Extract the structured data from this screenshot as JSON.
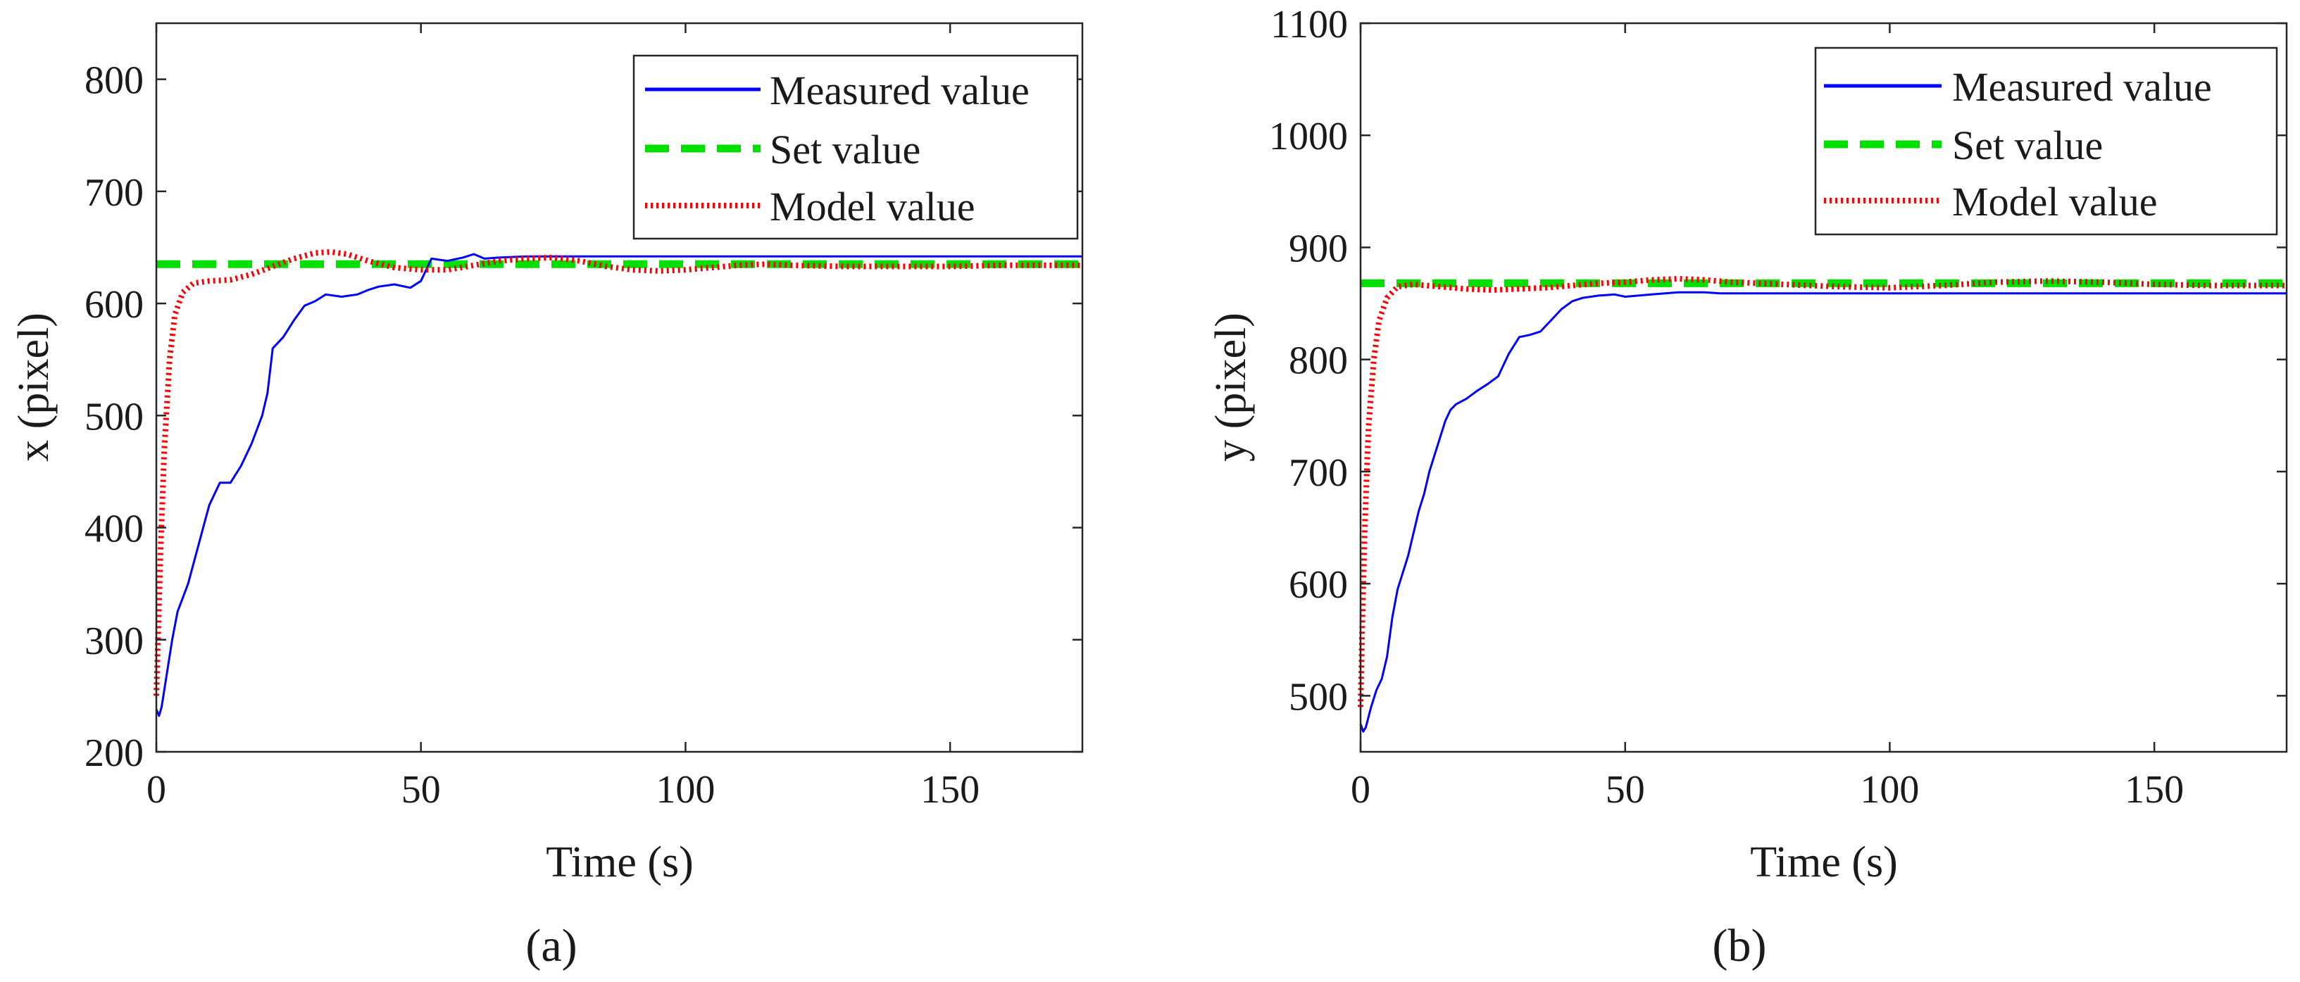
{
  "figure": {
    "panels": [
      "a",
      "b"
    ]
  },
  "legend_labels": {
    "measured": "Measured value",
    "set": "Set value",
    "model": "Model value"
  },
  "colors": {
    "measured": "#0000ff",
    "set": "#00e000",
    "model": "#ff0000",
    "axes": "#262626"
  },
  "chart_data": [
    {
      "id": "a",
      "type": "line",
      "caption": "(a)",
      "xlabel": "Time (s)",
      "ylabel": "x (pixel)",
      "xlim": [
        0,
        175
      ],
      "ylim": [
        200,
        850
      ],
      "xticks": [
        0,
        50,
        100,
        150
      ],
      "yticks": [
        200,
        300,
        400,
        500,
        600,
        700,
        800
      ],
      "grid": false,
      "legend_position": "top-right",
      "series": [
        {
          "name": "Measured value",
          "style": "solid",
          "points": [
            [
              0,
              238
            ],
            [
              0.5,
              232
            ],
            [
              1,
              240
            ],
            [
              2,
              270
            ],
            [
              3,
              300
            ],
            [
              4,
              325
            ],
            [
              6,
              350
            ],
            [
              8,
              385
            ],
            [
              10,
              420
            ],
            [
              12,
              440
            ],
            [
              14,
              440
            ],
            [
              16,
              455
            ],
            [
              18,
              475
            ],
            [
              20,
              500
            ],
            [
              21,
              520
            ],
            [
              22,
              560
            ],
            [
              24,
              570
            ],
            [
              26,
              585
            ],
            [
              28,
              598
            ],
            [
              30,
              602
            ],
            [
              32,
              608
            ],
            [
              35,
              606
            ],
            [
              38,
              608
            ],
            [
              40,
              612
            ],
            [
              42,
              615
            ],
            [
              45,
              617
            ],
            [
              48,
              614
            ],
            [
              50,
              620
            ],
            [
              52,
              640
            ],
            [
              55,
              638
            ],
            [
              58,
              641
            ],
            [
              60,
              644
            ],
            [
              62,
              640
            ],
            [
              65,
              641
            ],
            [
              70,
              642
            ],
            [
              80,
              642
            ],
            [
              100,
              642
            ],
            [
              120,
              642
            ],
            [
              140,
              642
            ],
            [
              160,
              642
            ],
            [
              175,
              642
            ]
          ]
        },
        {
          "name": "Set value",
          "style": "dashed",
          "points": [
            [
              0,
              635
            ],
            [
              175,
              635
            ]
          ]
        },
        {
          "name": "Model value",
          "style": "dotted",
          "points": [
            [
              0,
              250
            ],
            [
              0.3,
              300
            ],
            [
              0.8,
              380
            ],
            [
              1.5,
              470
            ],
            [
              2.5,
              550
            ],
            [
              3.5,
              590
            ],
            [
              5,
              610
            ],
            [
              7,
              618
            ],
            [
              10,
              620
            ],
            [
              14,
              621
            ],
            [
              18,
              626
            ],
            [
              22,
              633
            ],
            [
              26,
              640
            ],
            [
              30,
              645
            ],
            [
              33,
              646
            ],
            [
              36,
              644
            ],
            [
              40,
              638
            ],
            [
              45,
              632
            ],
            [
              50,
              630
            ],
            [
              55,
              630
            ],
            [
              60,
              634
            ],
            [
              65,
              638
            ],
            [
              70,
              640
            ],
            [
              75,
              641
            ],
            [
              80,
              638
            ],
            [
              85,
              633
            ],
            [
              90,
              630
            ],
            [
              95,
              629
            ],
            [
              100,
              630
            ],
            [
              105,
              632
            ],
            [
              110,
              634
            ],
            [
              115,
              635
            ],
            [
              120,
              634
            ],
            [
              130,
              633
            ],
            [
              140,
              633
            ],
            [
              150,
              633
            ],
            [
              160,
              634
            ],
            [
              175,
              634
            ]
          ]
        }
      ]
    },
    {
      "id": "b",
      "type": "line",
      "caption": "(b)",
      "xlabel": "Time (s)",
      "ylabel": "y (pixel)",
      "xlim": [
        0,
        175
      ],
      "ylim": [
        450,
        1100
      ],
      "xticks": [
        0,
        50,
        100,
        150
      ],
      "yticks": [
        500,
        600,
        700,
        800,
        900,
        1000,
        1100
      ],
      "grid": false,
      "legend_position": "top-right",
      "series": [
        {
          "name": "Measured value",
          "style": "solid",
          "points": [
            [
              0,
              475
            ],
            [
              0.5,
              468
            ],
            [
              1,
              472
            ],
            [
              2,
              490
            ],
            [
              3,
              505
            ],
            [
              4,
              515
            ],
            [
              5,
              535
            ],
            [
              6,
              570
            ],
            [
              7,
              595
            ],
            [
              8,
              610
            ],
            [
              9,
              625
            ],
            [
              10,
              645
            ],
            [
              11,
              665
            ],
            [
              12,
              680
            ],
            [
              13,
              700
            ],
            [
              14,
              715
            ],
            [
              15,
              730
            ],
            [
              16,
              745
            ],
            [
              17,
              755
            ],
            [
              18,
              760
            ],
            [
              20,
              765
            ],
            [
              22,
              772
            ],
            [
              24,
              778
            ],
            [
              26,
              785
            ],
            [
              28,
              805
            ],
            [
              30,
              820
            ],
            [
              32,
              822
            ],
            [
              34,
              825
            ],
            [
              36,
              835
            ],
            [
              38,
              845
            ],
            [
              40,
              852
            ],
            [
              42,
              855
            ],
            [
              45,
              857
            ],
            [
              48,
              858
            ],
            [
              50,
              856
            ],
            [
              55,
              858
            ],
            [
              60,
              860
            ],
            [
              65,
              860
            ],
            [
              68,
              859
            ],
            [
              70,
              859
            ],
            [
              80,
              859
            ],
            [
              100,
              859
            ],
            [
              120,
              859
            ],
            [
              140,
              859
            ],
            [
              160,
              859
            ],
            [
              175,
              859
            ]
          ]
        },
        {
          "name": "Set value",
          "style": "dashed",
          "points": [
            [
              0,
              868
            ],
            [
              175,
              868
            ]
          ]
        },
        {
          "name": "Model value",
          "style": "dotted",
          "points": [
            [
              0,
              490
            ],
            [
              0.3,
              560
            ],
            [
              0.8,
              650
            ],
            [
              1.5,
              740
            ],
            [
              2.5,
              800
            ],
            [
              3.5,
              835
            ],
            [
              5,
              855
            ],
            [
              7,
              865
            ],
            [
              10,
              867
            ],
            [
              15,
              865
            ],
            [
              20,
              863
            ],
            [
              25,
              862
            ],
            [
              30,
              863
            ],
            [
              35,
              864
            ],
            [
              40,
              866
            ],
            [
              45,
              868
            ],
            [
              50,
              869
            ],
            [
              55,
              871
            ],
            [
              60,
              872
            ],
            [
              65,
              871
            ],
            [
              70,
              869
            ],
            [
              80,
              867
            ],
            [
              90,
              865
            ],
            [
              100,
              864
            ],
            [
              110,
              866
            ],
            [
              120,
              869
            ],
            [
              130,
              870
            ],
            [
              140,
              869
            ],
            [
              150,
              867
            ],
            [
              160,
              866
            ],
            [
              175,
              866
            ]
          ]
        }
      ]
    }
  ]
}
